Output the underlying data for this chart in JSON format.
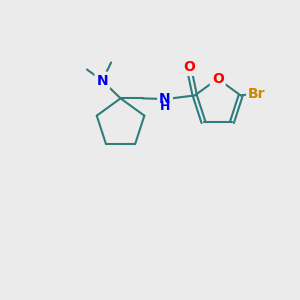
{
  "background_color": "#ebebeb",
  "bond_color": "#2d7d7d",
  "N_color": "#0000ee",
  "O_color": "#ff0000",
  "Br_color": "#cc8800",
  "C_color": "#2d7d7d",
  "line_width": 1.5,
  "font_size": 10,
  "figsize": [
    3.0,
    3.0
  ],
  "dpi": 100,
  "xlim": [
    0,
    10
  ],
  "ylim": [
    0,
    10
  ]
}
